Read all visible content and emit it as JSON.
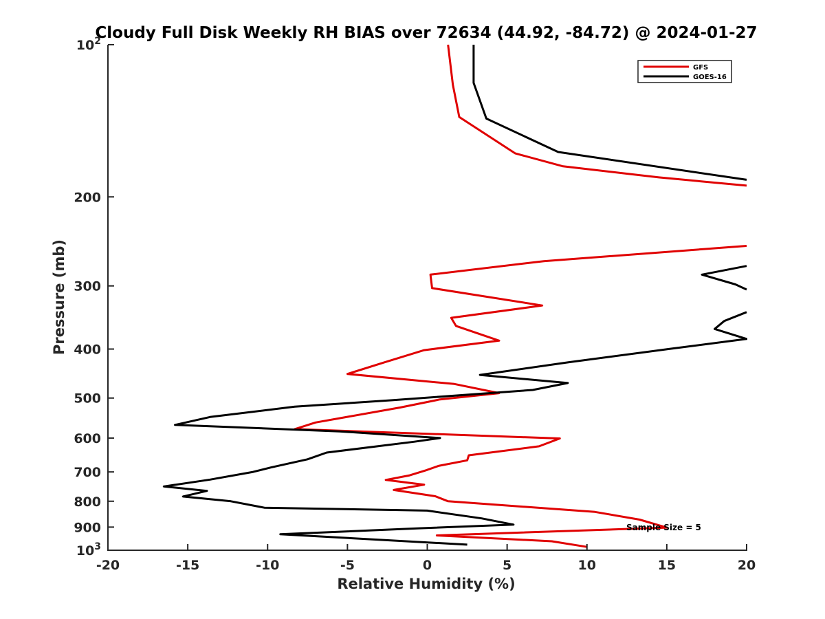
{
  "chart_data": {
    "type": "line",
    "title": "Cloudy Full Disk Weekly RH BIAS over 72634 (44.92, -84.72) @ 2024-01-27",
    "xlabel": "Relative Humidity (%)",
    "ylabel": "Pressure (mb)",
    "xlim": [
      -20,
      20
    ],
    "ylim": [
      100,
      1000
    ],
    "yscale": "log",
    "y_reversed": true,
    "grid": false,
    "legend_position": "top-right",
    "x_ticks": [
      "-20",
      "-15",
      "-10",
      "-5",
      "0",
      "5",
      "10",
      "15",
      "20"
    ],
    "y_ticks": [
      {
        "value": 100,
        "base": "10",
        "exp": "2"
      },
      {
        "value": 200,
        "label": "200"
      },
      {
        "value": 300,
        "label": "300"
      },
      {
        "value": 400,
        "label": "400"
      },
      {
        "value": 500,
        "label": "500"
      },
      {
        "value": 600,
        "label": "600"
      },
      {
        "value": 700,
        "label": "700"
      },
      {
        "value": 800,
        "label": "800"
      },
      {
        "value": 900,
        "label": "900"
      },
      {
        "value": 1000,
        "base": "10",
        "exp": "3"
      }
    ],
    "annotation": "Sample Size = 5",
    "series": [
      {
        "name": "GFS",
        "color": "#e00000",
        "segments": [
          [
            [
              1.3,
              100
            ],
            [
              1.6,
              120
            ],
            [
              2.0,
              139
            ],
            [
              5.5,
              164
            ],
            [
              8.5,
              174
            ],
            [
              14.5,
              183
            ],
            [
              20,
              190
            ]
          ],
          [
            [
              20,
              250
            ],
            [
              7.3,
              268
            ],
            [
              0.2,
              285
            ],
            [
              0.3,
              303
            ],
            [
              7.2,
              328
            ],
            [
              1.5,
              347
            ],
            [
              1.8,
              360
            ],
            [
              4.5,
              385
            ],
            [
              -0.2,
              402
            ],
            [
              -2.7,
              425
            ],
            [
              -5.0,
              448
            ],
            [
              1.7,
              469
            ],
            [
              4.5,
              489
            ],
            [
              0.8,
              503
            ],
            [
              -1.7,
              522
            ],
            [
              -7.0,
              559
            ],
            [
              -8.3,
              576
            ],
            [
              8.3,
              601
            ],
            [
              7.0,
              623
            ],
            [
              2.6,
              649
            ],
            [
              2.5,
              664
            ],
            [
              0.7,
              681
            ],
            [
              -0.1,
              695
            ],
            [
              -1.1,
              711
            ],
            [
              -2.6,
              726
            ],
            [
              -0.2,
              742
            ],
            [
              -2.1,
              760
            ],
            [
              0.5,
              782
            ],
            [
              1.3,
              800
            ],
            [
              10.5,
              840
            ],
            [
              13.3,
              870
            ],
            [
              15.0,
              902
            ],
            [
              0.6,
              935
            ],
            [
              7.8,
              960
            ],
            [
              10.0,
              985
            ]
          ]
        ]
      },
      {
        "name": "GOES-16",
        "color": "#000000",
        "segments": [
          [
            [
              2.9,
              100
            ],
            [
              2.9,
              119
            ],
            [
              3.7,
              140
            ],
            [
              8.2,
              163
            ],
            [
              20,
              185
            ]
          ],
          [
            [
              20,
              274
            ],
            [
              17.2,
              285
            ],
            [
              19.3,
              298
            ],
            [
              20,
              305
            ]
          ],
          [
            [
              20,
              338
            ],
            [
              18.6,
              352
            ],
            [
              18.0,
              365
            ],
            [
              20,
              382
            ],
            [
              15.1,
              400
            ],
            [
              8.8,
              425
            ],
            [
              3.3,
              450
            ],
            [
              8.8,
              467
            ],
            [
              6.6,
              482
            ],
            [
              -2.2,
              505
            ],
            [
              -8.3,
              520
            ],
            [
              -13.6,
              545
            ],
            [
              -15.8,
              565
            ],
            [
              -5.5,
              582
            ],
            [
              0.8,
              600
            ],
            [
              -0.8,
              610
            ],
            [
              -6.3,
              641
            ],
            [
              -7.5,
              661
            ],
            [
              -9.8,
              686
            ],
            [
              -10.9,
              700
            ],
            [
              -13.6,
              725
            ],
            [
              -16.5,
              748
            ],
            [
              -13.8,
              763
            ],
            [
              -15.3,
              783
            ],
            [
              -12.3,
              800
            ],
            [
              -10.2,
              824
            ],
            [
              0.0,
              835
            ],
            [
              3.4,
              865
            ],
            [
              5.4,
              890
            ],
            [
              -0.5,
              905
            ],
            [
              -9.2,
              930
            ],
            [
              2.5,
              975
            ]
          ]
        ]
      }
    ]
  }
}
